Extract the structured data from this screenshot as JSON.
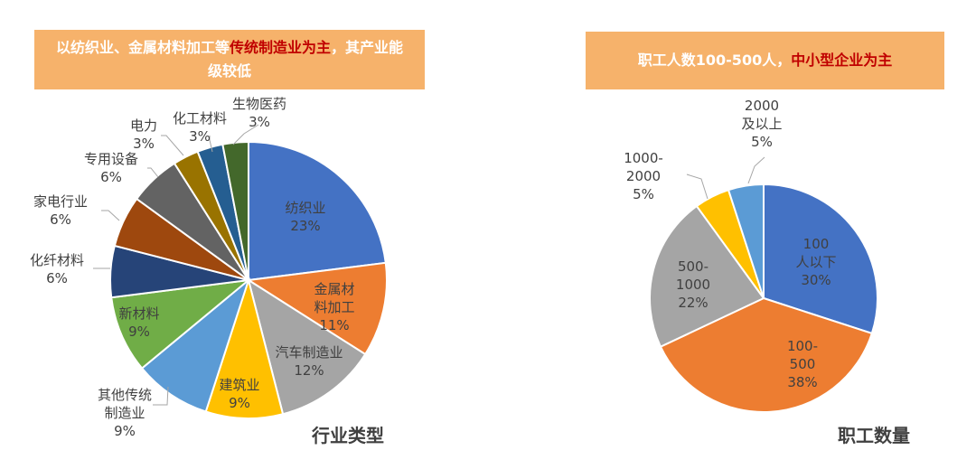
{
  "left_banner": {
    "text_before": "以纺织业、金属材料加工等",
    "text_highlight": "传统制造业为主",
    "text_after": "，其产业能级较低"
  },
  "right_banner": {
    "text_before": "职工人数100-500人，",
    "text_highlight": "中小型企业为主"
  },
  "colors": {
    "banner_bg": "#F6B26B",
    "banner_text": "#FFFFFF",
    "highlight": "#C00000"
  },
  "chart_data": [
    {
      "type": "pie",
      "title": "行业类型",
      "slices": [
        {
          "label": "纺织业",
          "value": 23,
          "display": "23%",
          "color": "#4472C4"
        },
        {
          "label": "金属材料加工",
          "value": 11,
          "display": "11%",
          "color": "#ED7D31"
        },
        {
          "label": "汽车制造业",
          "value": 12,
          "display": "12%",
          "color": "#A5A5A5"
        },
        {
          "label": "建筑业",
          "value": 9,
          "display": "9%",
          "color": "#FFC000"
        },
        {
          "label": "其他传统制造业",
          "value": 9,
          "display": "9%",
          "color": "#5B9BD5"
        },
        {
          "label": "新材料",
          "value": 9,
          "display": "9%",
          "color": "#70AD47"
        },
        {
          "label": "化纤材料",
          "value": 6,
          "display": "6%",
          "color": "#264478"
        },
        {
          "label": "家电行业",
          "value": 6,
          "display": "6%",
          "color": "#9E480E"
        },
        {
          "label": "专用设备",
          "value": 6,
          "display": "6%",
          "color": "#636363"
        },
        {
          "label": "电力",
          "value": 3,
          "display": "3%",
          "color": "#997300"
        },
        {
          "label": "化工材料",
          "value": 3,
          "display": "3%",
          "color": "#255E91"
        },
        {
          "label": "生物医药",
          "value": 3,
          "display": "3%",
          "color": "#43682B"
        }
      ]
    },
    {
      "type": "pie",
      "title": "职工数量",
      "slices": [
        {
          "label": "100人以下",
          "value": 30,
          "display": "30%",
          "color": "#4472C4"
        },
        {
          "label": "100-500",
          "value": 38,
          "display": "38%",
          "color": "#ED7D31"
        },
        {
          "label": "500-1000",
          "value": 22,
          "display": "22%",
          "color": "#A5A5A5"
        },
        {
          "label": "1000-2000",
          "value": 5,
          "display": "5%",
          "color": "#FFC000"
        },
        {
          "label": "2000及以上",
          "value": 5,
          "display": "5%",
          "color": "#5B9BD5"
        }
      ]
    }
  ]
}
